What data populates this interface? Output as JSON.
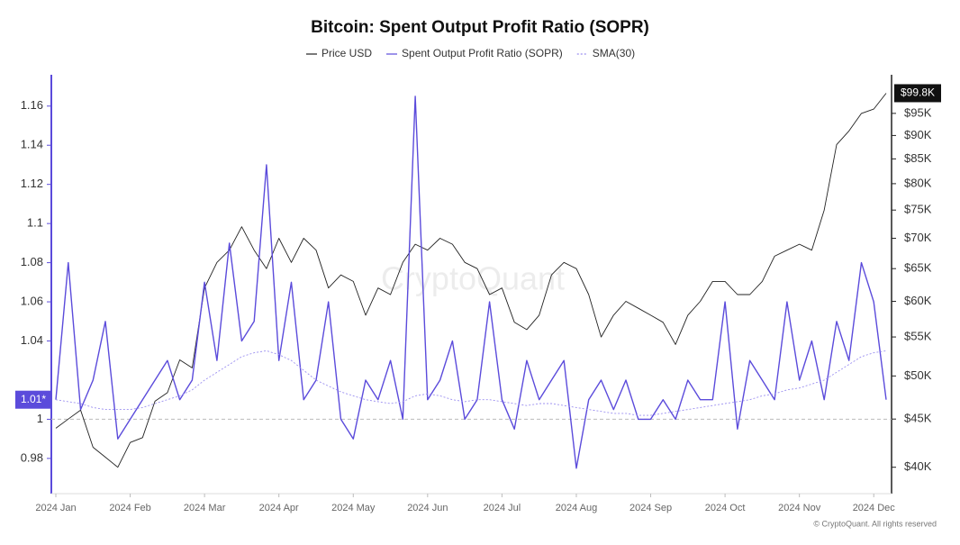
{
  "chart_data": {
    "type": "line",
    "title": "Bitcoin: Spent Output Profit Ratio (SOPR)",
    "watermark": "CryptoQuant",
    "source": "© CryptoQuant. All rights reserved",
    "categories": [
      "2024 Jan",
      null,
      null,
      null,
      null,
      null,
      "2024 Feb",
      null,
      null,
      null,
      null,
      null,
      "2024 Mar",
      null,
      null,
      null,
      null,
      null,
      "2024 Apr",
      null,
      null,
      null,
      null,
      null,
      "2024 May",
      null,
      null,
      null,
      null,
      null,
      "2024 Jun",
      null,
      null,
      null,
      null,
      null,
      "2024 Jul",
      null,
      null,
      null,
      null,
      null,
      "2024 Aug",
      null,
      null,
      null,
      null,
      null,
      "2024 Sep",
      null,
      null,
      null,
      null,
      null,
      "2024 Oct",
      null,
      null,
      null,
      null,
      null,
      "2024 Nov",
      null,
      null,
      null,
      null,
      null,
      "2024 Dec",
      null
    ],
    "series": [
      {
        "name": "Price USD",
        "color": "#222222",
        "axis": "y2",
        "width": 0.9,
        "values": [
          44000,
          45000,
          46000,
          42000,
          41000,
          40000,
          42500,
          43000,
          47000,
          48000,
          52000,
          51000,
          62000,
          66000,
          68000,
          72000,
          68000,
          65000,
          70000,
          66000,
          70000,
          68000,
          62000,
          64000,
          63000,
          58000,
          62000,
          61000,
          66000,
          69000,
          68000,
          70000,
          69000,
          66000,
          65000,
          61000,
          62000,
          57000,
          56000,
          58000,
          64000,
          66000,
          65000,
          61000,
          55000,
          58000,
          60000,
          59000,
          58000,
          57000,
          54000,
          58000,
          60000,
          63000,
          63000,
          61000,
          61000,
          63000,
          67000,
          68000,
          69000,
          68000,
          75000,
          88000,
          91000,
          95000,
          96000,
          99800
        ]
      },
      {
        "name": "Spent Output Profit Ratio (SOPR)",
        "color": "#5b4bdb",
        "axis": "y",
        "width": 1.4,
        "values": [
          1.01,
          1.08,
          1.005,
          1.02,
          1.05,
          0.99,
          1.0,
          1.01,
          1.02,
          1.03,
          1.01,
          1.02,
          1.07,
          1.03,
          1.09,
          1.04,
          1.05,
          1.13,
          1.03,
          1.07,
          1.01,
          1.02,
          1.06,
          1.0,
          0.99,
          1.02,
          1.01,
          1.03,
          1.0,
          1.165,
          1.01,
          1.02,
          1.04,
          1.0,
          1.01,
          1.06,
          1.01,
          0.995,
          1.03,
          1.01,
          1.02,
          1.03,
          0.975,
          1.01,
          1.02,
          1.005,
          1.02,
          1.0,
          1.0,
          1.01,
          1.0,
          1.02,
          1.01,
          1.01,
          1.06,
          0.995,
          1.03,
          1.02,
          1.01,
          1.06,
          1.02,
          1.04,
          1.01,
          1.05,
          1.03,
          1.08,
          1.06,
          1.01
        ]
      },
      {
        "name": "SMA(30)",
        "color": "#9b8ff0",
        "axis": "y",
        "width": 0.9,
        "dashed": true,
        "values": [
          1.01,
          1.009,
          1.008,
          1.006,
          1.005,
          1.005,
          1.005,
          1.006,
          1.008,
          1.01,
          1.012,
          1.015,
          1.02,
          1.024,
          1.028,
          1.032,
          1.034,
          1.035,
          1.033,
          1.03,
          1.025,
          1.02,
          1.017,
          1.014,
          1.012,
          1.01,
          1.009,
          1.008,
          1.009,
          1.012,
          1.013,
          1.012,
          1.01,
          1.009,
          1.01,
          1.01,
          1.009,
          1.008,
          1.007,
          1.008,
          1.008,
          1.007,
          1.006,
          1.005,
          1.004,
          1.003,
          1.003,
          1.002,
          1.002,
          1.003,
          1.004,
          1.005,
          1.006,
          1.007,
          1.008,
          1.009,
          1.01,
          1.012,
          1.013,
          1.015,
          1.016,
          1.018,
          1.02,
          1.024,
          1.028,
          1.032,
          1.034,
          1.035
        ]
      }
    ],
    "ylim": [
      0.962,
      1.176
    ],
    "yticks": [
      0.98,
      1,
      1.04,
      1.06,
      1.08,
      1.1,
      1.12,
      1.14,
      1.16
    ],
    "y2lim": [
      37500,
      104400
    ],
    "y2_log": true,
    "y2ticks": [
      {
        "value": 40000,
        "label": "$40K"
      },
      {
        "value": 45000,
        "label": "$45K"
      },
      {
        "value": 50000,
        "label": "$50K"
      },
      {
        "value": 55000,
        "label": "$55K"
      },
      {
        "value": 60000,
        "label": "$60K"
      },
      {
        "value": 65000,
        "label": "$65K"
      },
      {
        "value": 70000,
        "label": "$70K"
      },
      {
        "value": 75000,
        "label": "$75K"
      },
      {
        "value": 80000,
        "label": "$80K"
      },
      {
        "value": 85000,
        "label": "$85K"
      },
      {
        "value": 90000,
        "label": "$90K"
      },
      {
        "value": 95000,
        "label": "$95K"
      }
    ],
    "reference_line": 1,
    "current_labels": [
      {
        "value": 1.01,
        "label": "1.01*",
        "axis": "y",
        "color": "#5b4bdb"
      },
      {
        "value": 99800,
        "label": "$99.8K",
        "axis": "y2",
        "color": "#111111"
      }
    ],
    "legend": "top"
  }
}
